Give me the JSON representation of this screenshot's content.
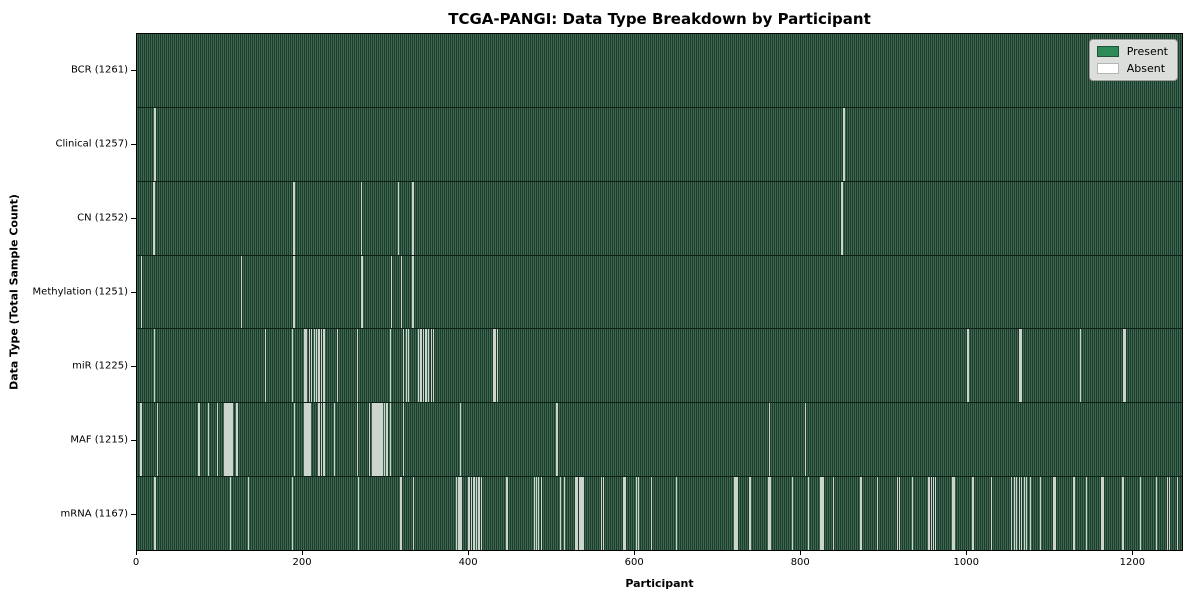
{
  "title": "TCGA-PANGI: Data Type Breakdown by Participant",
  "xlabel": "Participant",
  "ylabel": "Data Type (Total Sample Count)",
  "legend": {
    "present_label": "Present",
    "absent_label": "Absent",
    "position": "upper right"
  },
  "colors": {
    "present_green": "#2e8b57",
    "bar_stripe_light": "#3a6850",
    "bar_stripe_dark": "#203a2b",
    "absent_white": "#ffffff",
    "absent_line_gray": "#ccd4cd",
    "legend_bg": "#dcdedc",
    "axis_black": "#000000"
  },
  "chart_data": {
    "type": "heatmap",
    "title": "TCGA-PANGI: Data Type Breakdown by Participant",
    "xlabel": "Participant",
    "ylabel": "Data Type (Total Sample Count)",
    "legend_entries": [
      "Present",
      "Absent"
    ],
    "legend_position": "upper right",
    "grid": false,
    "x_ticks": [
      0,
      200,
      400,
      600,
      800,
      1000,
      1200
    ],
    "x_range": [
      0,
      1261
    ],
    "total_participants": 1261,
    "cell_values": "present=1 (green), absent=0 (white); absent participant indices are approximate positions read from the figure",
    "rows": [
      {
        "name": "BCR",
        "label": "BCR (1261)",
        "present_count": 1261,
        "absent_count": 0,
        "absent_participants": []
      },
      {
        "name": "Clinical",
        "label": "Clinical (1257)",
        "present_count": 1257,
        "absent_count": 4,
        "absent_participants": [
          20,
          21,
          852,
          853
        ]
      },
      {
        "name": "CN",
        "label": "CN (1252)",
        "present_count": 1252,
        "absent_count": 9,
        "absent_participants": [
          19,
          20,
          188,
          189,
          270,
          315,
          332,
          333,
          850
        ]
      },
      {
        "name": "Methylation",
        "label": "Methylation (1251)",
        "present_count": 1251,
        "absent_count": 10,
        "absent_participants": [
          5,
          125,
          188,
          189,
          270,
          271,
          306,
          318,
          332,
          333
        ]
      },
      {
        "name": "miR",
        "label": "miR (1225)",
        "present_count": 1225,
        "absent_count": 36,
        "absent_participants": [
          20,
          154,
          187,
          202,
          204,
          207,
          210,
          213,
          216,
          219,
          222,
          225,
          241,
          265,
          305,
          321,
          324,
          327,
          339,
          342,
          345,
          348,
          351,
          355,
          357,
          430,
          432,
          434,
          1001,
          1003,
          1064,
          1066,
          1138,
          1190,
          1191,
          1192
        ]
      },
      {
        "name": "MAF",
        "label": "MAF (1215)",
        "present_count": 1215,
        "absent_count": 46,
        "absent_participants": [
          4,
          24,
          74,
          86,
          96,
          105,
          106,
          107,
          108,
          109,
          110,
          111,
          112,
          113,
          114,
          120,
          189,
          202,
          203,
          204,
          205,
          206,
          208,
          219,
          222,
          225,
          238,
          265,
          280,
          283,
          284,
          286,
          287,
          289,
          290,
          292,
          293,
          295,
          298,
          301,
          305,
          321,
          390,
          506,
          763,
          806
        ]
      },
      {
        "name": "mRNA",
        "label": "mRNA (1167)",
        "present_count": 1167,
        "absent_count": 94,
        "absent_participants": [
          20,
          21,
          112,
          134,
          187,
          267,
          317,
          318,
          333,
          385,
          387,
          389,
          391,
          400,
          403,
          406,
          409,
          412,
          415,
          445,
          446,
          479,
          481,
          484,
          487,
          510,
          515,
          529,
          531,
          533,
          535,
          537,
          538,
          560,
          562,
          587,
          589,
          602,
          604,
          620,
          650,
          720,
          722,
          724,
          738,
          740,
          762,
          764,
          790,
          810,
          824,
          825,
          827,
          840,
          872,
          874,
          893,
          917,
          919,
          935,
          954,
          956,
          958,
          960,
          963,
          984,
          986,
          1007,
          1009,
          1030,
          1055,
          1058,
          1061,
          1064,
          1067,
          1070,
          1073,
          1077,
          1090,
          1105,
          1107,
          1129,
          1131,
          1145,
          1163,
          1165,
          1188,
          1189,
          1190,
          1210,
          1230,
          1243,
          1245,
          1255
        ]
      }
    ]
  }
}
